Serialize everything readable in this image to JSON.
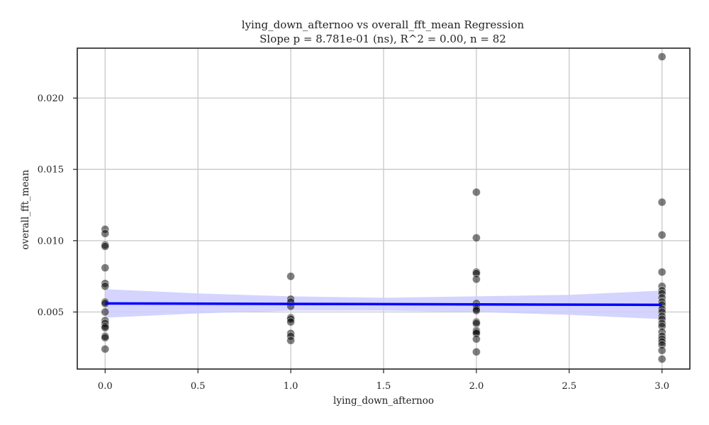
{
  "chart_data": {
    "type": "scatter",
    "title": "lying_down_afternoo vs overall_fft_mean Regression",
    "subtitle": "Slope p = 8.781e-01 (ns), R^2 = 0.00, n = 82",
    "xlabel": "lying_down_afternoo",
    "ylabel": "overall_fft_mean",
    "xlim": [
      -0.15,
      3.15
    ],
    "ylim": [
      0.001,
      0.0235
    ],
    "xticks": [
      0.0,
      0.5,
      1.0,
      1.5,
      2.0,
      2.5,
      3.0
    ],
    "xtick_labels": [
      "0.0",
      "0.5",
      "1.0",
      "1.5",
      "2.0",
      "2.5",
      "3.0"
    ],
    "yticks": [
      0.005,
      0.01,
      0.015,
      0.02
    ],
    "ytick_labels": [
      "0.005",
      "0.010",
      "0.015",
      "0.020"
    ],
    "grid": true,
    "colors": {
      "points": "#000000",
      "regression_line": "#0000ff",
      "confidence_band": "#ccccff",
      "grid": "#cccccc",
      "axes": "#222222"
    },
    "points": [
      {
        "x": 0,
        "y": 0.0108
      },
      {
        "x": 0,
        "y": 0.0105
      },
      {
        "x": 0,
        "y": 0.0097
      },
      {
        "x": 0,
        "y": 0.0096
      },
      {
        "x": 0,
        "y": 0.0081
      },
      {
        "x": 0,
        "y": 0.007
      },
      {
        "x": 0,
        "y": 0.0068
      },
      {
        "x": 0,
        "y": 0.0057
      },
      {
        "x": 0,
        "y": 0.0056
      },
      {
        "x": 0,
        "y": 0.005
      },
      {
        "x": 0,
        "y": 0.0044
      },
      {
        "x": 0,
        "y": 0.0042
      },
      {
        "x": 0,
        "y": 0.004
      },
      {
        "x": 0,
        "y": 0.0039
      },
      {
        "x": 0,
        "y": 0.0033
      },
      {
        "x": 0,
        "y": 0.0032
      },
      {
        "x": 0,
        "y": 0.0024
      },
      {
        "x": 1,
        "y": 0.0075
      },
      {
        "x": 1,
        "y": 0.0059
      },
      {
        "x": 1,
        "y": 0.0057
      },
      {
        "x": 1,
        "y": 0.0054
      },
      {
        "x": 1,
        "y": 0.0046
      },
      {
        "x": 1,
        "y": 0.0045
      },
      {
        "x": 1,
        "y": 0.0043
      },
      {
        "x": 1,
        "y": 0.0035
      },
      {
        "x": 1,
        "y": 0.0033
      },
      {
        "x": 1,
        "y": 0.003
      },
      {
        "x": 2,
        "y": 0.0134
      },
      {
        "x": 2,
        "y": 0.0102
      },
      {
        "x": 2,
        "y": 0.0078
      },
      {
        "x": 2,
        "y": 0.0077
      },
      {
        "x": 2,
        "y": 0.0073
      },
      {
        "x": 2,
        "y": 0.0056
      },
      {
        "x": 2,
        "y": 0.0054
      },
      {
        "x": 2,
        "y": 0.0052
      },
      {
        "x": 2,
        "y": 0.0051
      },
      {
        "x": 2,
        "y": 0.0043
      },
      {
        "x": 2,
        "y": 0.0042
      },
      {
        "x": 2,
        "y": 0.0037
      },
      {
        "x": 2,
        "y": 0.0036
      },
      {
        "x": 2,
        "y": 0.0035
      },
      {
        "x": 2,
        "y": 0.0031
      },
      {
        "x": 2,
        "y": 0.0022
      },
      {
        "x": 3,
        "y": 0.0229
      },
      {
        "x": 3,
        "y": 0.0127
      },
      {
        "x": 3,
        "y": 0.0104
      },
      {
        "x": 3,
        "y": 0.0078
      },
      {
        "x": 3,
        "y": 0.0068
      },
      {
        "x": 3,
        "y": 0.0065
      },
      {
        "x": 3,
        "y": 0.0063
      },
      {
        "x": 3,
        "y": 0.006
      },
      {
        "x": 3,
        "y": 0.0057
      },
      {
        "x": 3,
        "y": 0.0055
      },
      {
        "x": 3,
        "y": 0.0052
      },
      {
        "x": 3,
        "y": 0.005
      },
      {
        "x": 3,
        "y": 0.0047
      },
      {
        "x": 3,
        "y": 0.0045
      },
      {
        "x": 3,
        "y": 0.0042
      },
      {
        "x": 3,
        "y": 0.004
      },
      {
        "x": 3,
        "y": 0.0036
      },
      {
        "x": 3,
        "y": 0.0033
      },
      {
        "x": 3,
        "y": 0.0031
      },
      {
        "x": 3,
        "y": 0.0029
      },
      {
        "x": 3,
        "y": 0.0027
      },
      {
        "x": 3,
        "y": 0.0023
      },
      {
        "x": 3,
        "y": 0.0017
      }
    ],
    "regression": {
      "x": [
        0.0,
        3.0
      ],
      "y": [
        0.0056,
        0.0055
      ]
    },
    "confidence_band": {
      "x": [
        0.0,
        0.5,
        1.0,
        1.5,
        2.0,
        2.5,
        3.0
      ],
      "lower": [
        0.0046,
        0.0049,
        0.0051,
        0.0051,
        0.005,
        0.0048,
        0.0045
      ],
      "upper": [
        0.0066,
        0.0063,
        0.0061,
        0.006,
        0.0061,
        0.0062,
        0.0065
      ]
    }
  }
}
